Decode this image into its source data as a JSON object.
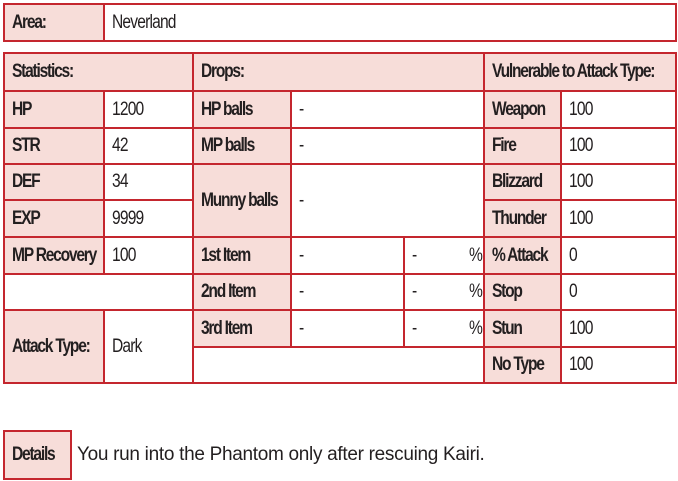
{
  "area": {
    "label": "Area:",
    "value": "Neverland"
  },
  "statistics": {
    "header": "Statistics:",
    "rows": [
      [
        "HP",
        "1200"
      ],
      [
        "STR",
        "42"
      ],
      [
        "DEF",
        "34"
      ],
      [
        "EXP",
        "9999"
      ],
      [
        "MP Recovery",
        "100"
      ]
    ]
  },
  "attack_type": {
    "label": "Attack Type:",
    "value": "Dark"
  },
  "drops": {
    "header": "Drops:",
    "balls": [
      [
        "HP balls",
        "-"
      ],
      [
        "MP balls",
        "-"
      ],
      [
        "Munny balls",
        "-"
      ]
    ],
    "items": [
      [
        "1st Item",
        "-",
        "-",
        "%"
      ],
      [
        "2nd Item",
        "-",
        "-",
        "%"
      ],
      [
        "3rd Item",
        "-",
        "-",
        "%"
      ]
    ]
  },
  "vulnerable": {
    "header": "Vulnerable to Attack Type:",
    "rows": [
      [
        "Weapon",
        "100"
      ],
      [
        "Fire",
        "100"
      ],
      [
        "Blizzard",
        "100"
      ],
      [
        "Thunder",
        "100"
      ],
      [
        "% Attack",
        "0"
      ],
      [
        "Stop",
        "0"
      ],
      [
        "Stun",
        "100"
      ],
      [
        "No Type",
        "100"
      ]
    ]
  },
  "details": {
    "label": "Details",
    "text": "You run into the Phantom only after rescuing Kairi."
  }
}
